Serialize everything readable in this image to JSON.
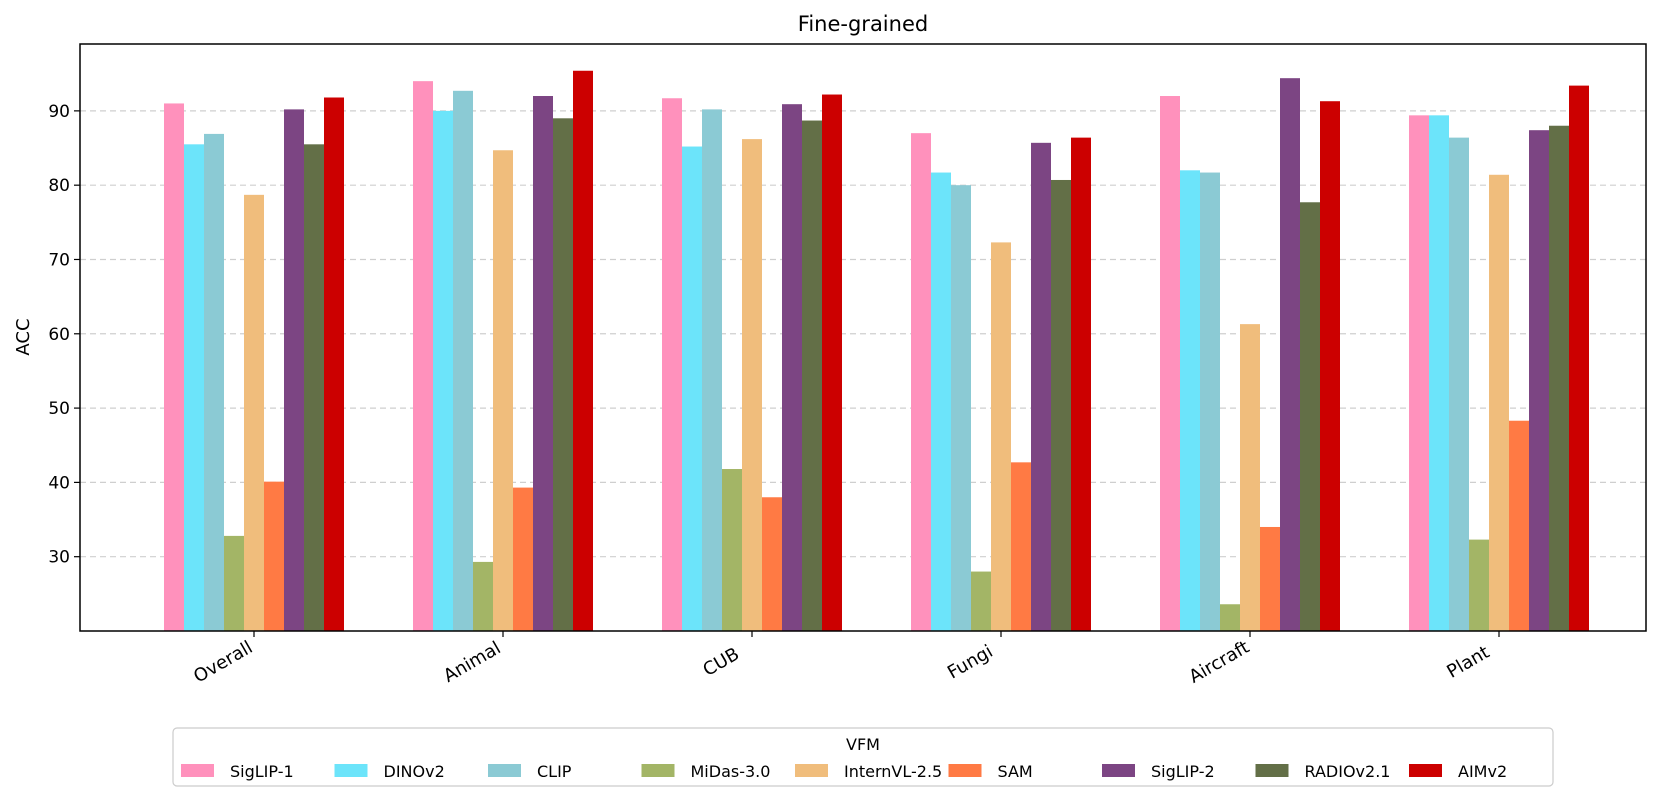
{
  "chart_data": {
    "type": "bar",
    "title": "Fine-grained",
    "xlabel": "",
    "ylabel": "ACC",
    "ylim": [
      20,
      99
    ],
    "yticks": [
      30,
      40,
      50,
      60,
      70,
      80,
      90
    ],
    "grid": "horizontal dashed",
    "legend_title": "VFM",
    "legend_position": "bottom-center",
    "categories": [
      "Overall",
      "Animal",
      "CUB",
      "Fungi",
      "Aircraft",
      "Plant"
    ],
    "series": [
      {
        "name": "SigLIP-1",
        "color": "#FF91BC",
        "values": [
          91.0,
          94.0,
          91.7,
          87.0,
          92.0,
          89.4
        ]
      },
      {
        "name": "DINOv2",
        "color": "#6CE4FA",
        "values": [
          85.5,
          90.0,
          85.2,
          81.7,
          82.0,
          89.4
        ]
      },
      {
        "name": "CLIP",
        "color": "#8BCAD4",
        "values": [
          86.9,
          92.7,
          90.2,
          80.0,
          81.7,
          86.4
        ]
      },
      {
        "name": "MiDas-3.0",
        "color": "#A3B566",
        "values": [
          32.8,
          29.3,
          41.8,
          28.0,
          23.6,
          32.3
        ]
      },
      {
        "name": "InternVL-2.5",
        "color": "#F0BD7C",
        "values": [
          78.7,
          84.7,
          86.2,
          72.3,
          61.3,
          81.4
        ]
      },
      {
        "name": "SAM",
        "color": "#FF7A44",
        "values": [
          40.1,
          39.3,
          38.0,
          42.7,
          34.0,
          48.3
        ]
      },
      {
        "name": "SigLIP-2",
        "color": "#7C4583",
        "values": [
          90.2,
          92.0,
          90.9,
          85.7,
          94.4,
          87.4
        ]
      },
      {
        "name": "RADIOv2.1",
        "color": "#636F47",
        "values": [
          85.5,
          89.0,
          88.7,
          80.7,
          77.7,
          88.0
        ]
      },
      {
        "name": "AIMv2",
        "color": "#CC0000",
        "values": [
          91.8,
          95.4,
          92.2,
          86.4,
          91.3,
          93.4
        ]
      }
    ]
  }
}
